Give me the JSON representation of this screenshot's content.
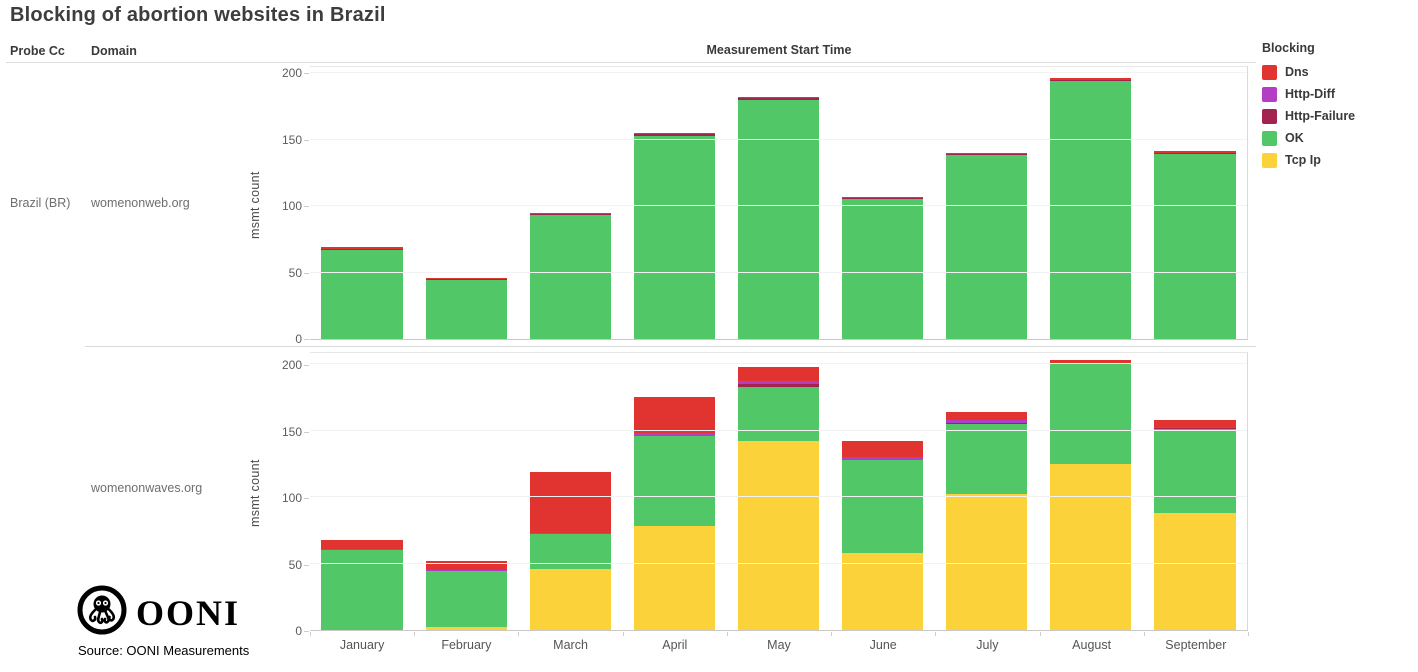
{
  "title": "Blocking of abortion websites in Brazil",
  "column_headers": {
    "probe_cc": "Probe Cc",
    "domain": "Domain"
  },
  "x_axis_title": "Measurement Start Time",
  "y_axis_title": "msmt count",
  "rows": {
    "probe_cc": "Brazil (BR)",
    "domain_top": "womenonweb.org",
    "domain_bottom": "womenonwaves.org"
  },
  "legend": {
    "title": "Blocking",
    "items": [
      {
        "label": "Dns",
        "color": "#e13431"
      },
      {
        "label": "Http-Diff",
        "color": "#b43dc6"
      },
      {
        "label": "Http-Failure",
        "color": "#a2234f"
      },
      {
        "label": "OK",
        "color": "#52c767"
      },
      {
        "label": "Tcp Ip",
        "color": "#fcd23b"
      }
    ]
  },
  "branding": {
    "logo_text": "OONI",
    "source": "Source: OONI Measurements"
  },
  "chart_data": {
    "type": "bar",
    "stacked": true,
    "grid": "horizontal-light",
    "legend_position": "top-right",
    "categories": [
      "January",
      "February",
      "March",
      "April",
      "May",
      "June",
      "July",
      "August",
      "September"
    ],
    "ylabel": "msmt count",
    "ylim": [
      0,
      200
    ],
    "yticks": [
      0,
      50,
      100,
      150,
      200
    ],
    "stack_order_bottom_to_top": [
      "Tcp Ip",
      "OK",
      "Http-Failure",
      "Http-Diff",
      "Dns"
    ],
    "facets": [
      {
        "probe_cc": "Brazil (BR)",
        "domain": "womenonweb.org",
        "series": [
          {
            "name": "Tcp Ip",
            "values": [
              0,
              0,
              0,
              0,
              0,
              0,
              0,
              0,
              0
            ]
          },
          {
            "name": "OK",
            "values": [
              67,
              44,
              93,
              153,
              180,
              105,
              138,
              194,
              139
            ]
          },
          {
            "name": "Http-Failure",
            "values": [
              1,
              1,
              1,
              1,
              1,
              1,
              1,
              1,
              1
            ]
          },
          {
            "name": "Http-Diff",
            "values": [
              0,
              0,
              0,
              0,
              0,
              0,
              0,
              0,
              0
            ]
          },
          {
            "name": "Dns",
            "values": [
              1,
              1,
              1,
              1,
              1,
              1,
              1,
              1,
              1
            ]
          }
        ],
        "totals": [
          69,
          46,
          95,
          155,
          182,
          107,
          140,
          196,
          141
        ]
      },
      {
        "probe_cc": "Brazil (BR)",
        "domain": "womenonwaves.org",
        "series": [
          {
            "name": "Tcp Ip",
            "values": [
              0,
              2,
              46,
              78,
              142,
              58,
              102,
              125,
              88
            ]
          },
          {
            "name": "OK",
            "values": [
              60,
              42,
              26,
              68,
              41,
              70,
              53,
              75,
              63
            ]
          },
          {
            "name": "Http-Failure",
            "values": [
              0,
              0,
              0,
              0,
              2,
              0,
              1,
              0,
              1
            ]
          },
          {
            "name": "Http-Diff",
            "values": [
              1,
              1,
              1,
              2,
              2,
              2,
              2,
              1,
              1
            ]
          },
          {
            "name": "Dns",
            "values": [
              7,
              7,
              46,
              27,
              11,
              12,
              6,
              2,
              5
            ]
          }
        ],
        "totals": [
          68,
          52,
          119,
          175,
          198,
          142,
          164,
          203,
          158
        ]
      }
    ]
  }
}
